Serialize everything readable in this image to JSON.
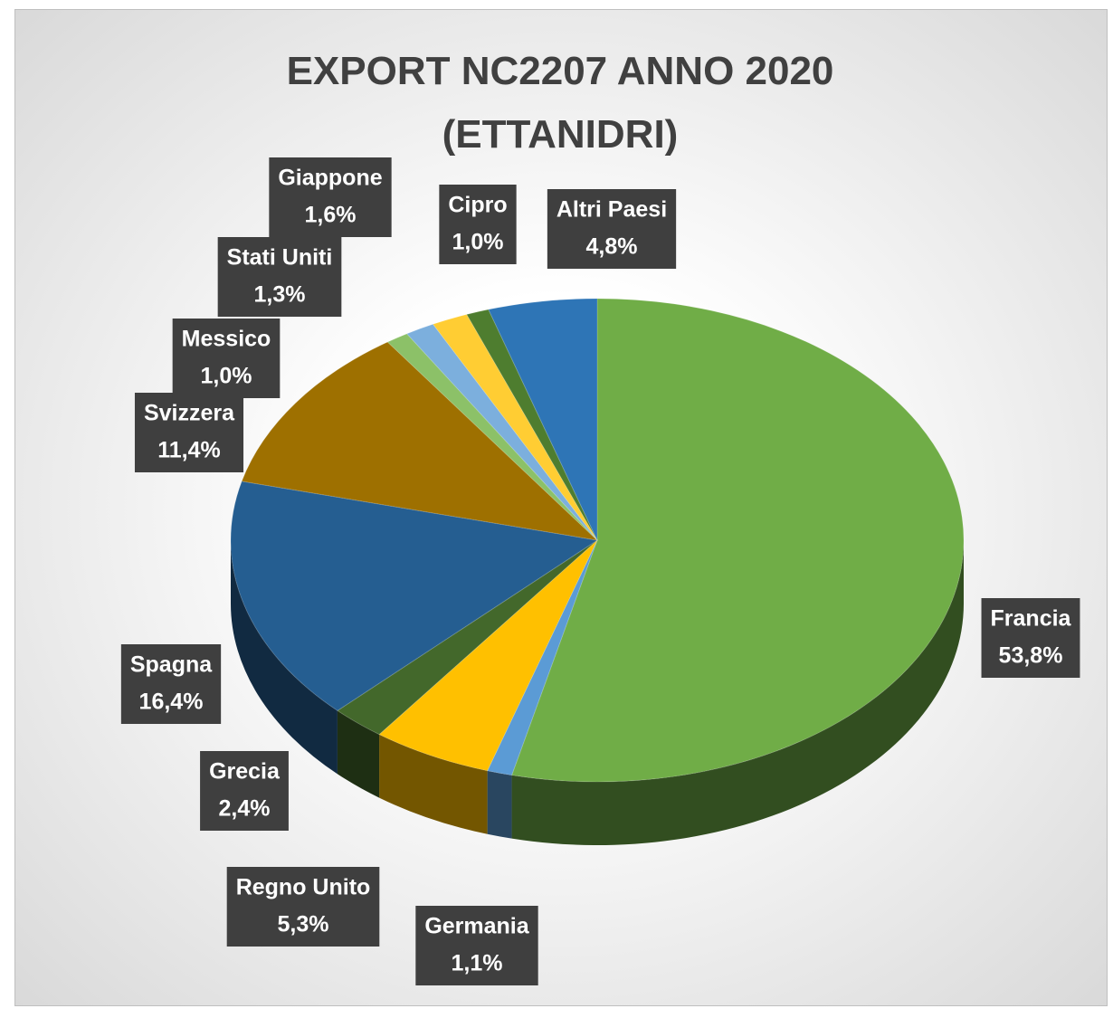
{
  "chart_data": {
    "type": "pie",
    "title": "EXPORT NC2207 ANNO 2020\n(ETTANIDRI)",
    "categories": [
      "Francia",
      "Germania",
      "Regno Unito",
      "Grecia",
      "Spagna",
      "Svizzera",
      "Messico",
      "Stati Uniti",
      "Giappone",
      "Cipro",
      "Altri Paesi"
    ],
    "values": [
      53.8,
      1.1,
      5.3,
      2.4,
      16.4,
      11.4,
      1.0,
      1.3,
      1.6,
      1.0,
      4.8
    ],
    "value_labels": [
      "53,8%",
      "1,1%",
      "5,3%",
      "2,4%",
      "16,4%",
      "11,4%",
      "1,0%",
      "1,3%",
      "1,6%",
      "1,0%",
      "4,8%"
    ],
    "colors": [
      "#70ad47",
      "#5b9bd5",
      "#ffc000",
      "#43682b",
      "#255e91",
      "#9e7000",
      "#8cc168",
      "#7cafdd",
      "#ffcd33",
      "#4e7d2f",
      "#2e75b6"
    ]
  }
}
